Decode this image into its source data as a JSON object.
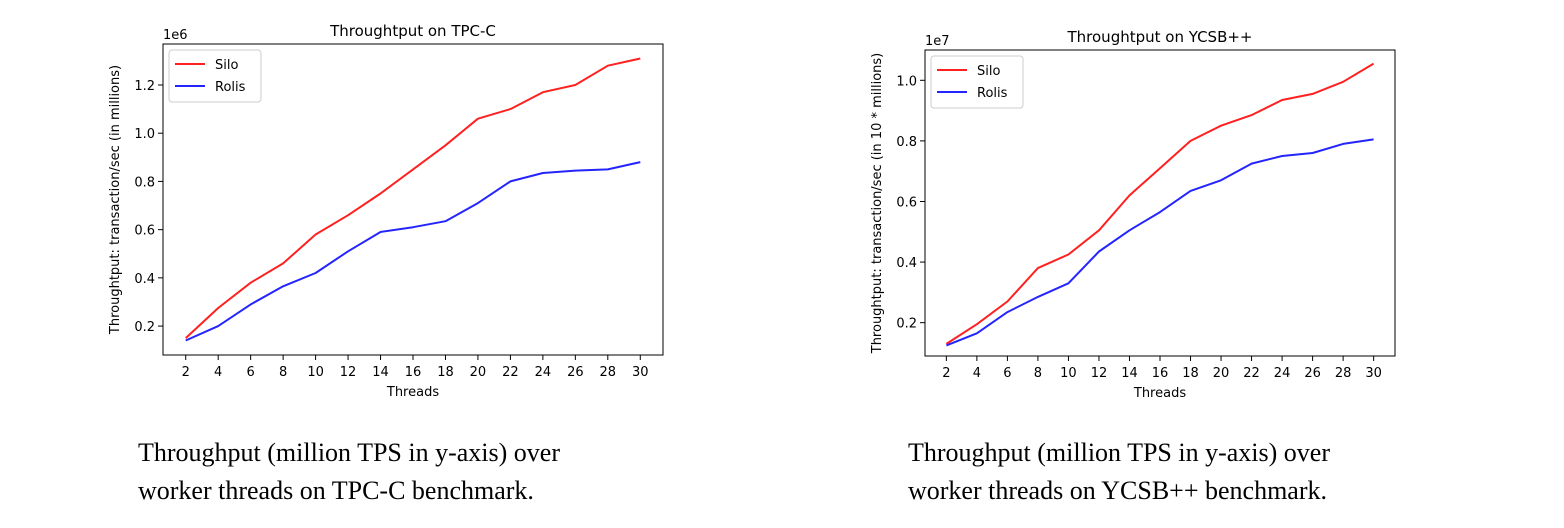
{
  "colors": {
    "silo": "#ff2020",
    "rolis": "#2424ff",
    "axis": "#000000"
  },
  "captions": [
    {
      "line1": "Throughput (million TPS in y-axis) over",
      "line2": "worker threads on TPC-C benchmark."
    },
    {
      "line1": "Throughput (million TPS in y-axis) over",
      "line2": "worker threads on YCSB++ benchmark."
    }
  ],
  "chart_data": [
    {
      "type": "line",
      "title": "Throughtput on TPC-C",
      "xlabel": "Threads",
      "ylabel": "Throughtput: transaction/sec (in millions)",
      "offset_text": "1e6",
      "x": [
        2,
        4,
        6,
        8,
        10,
        12,
        14,
        16,
        18,
        20,
        22,
        24,
        26,
        28,
        30
      ],
      "xticks": [
        "2",
        "4",
        "6",
        "8",
        "10",
        "12",
        "14",
        "16",
        "18",
        "20",
        "22",
        "24",
        "26",
        "28",
        "30"
      ],
      "yticks": [
        0.2,
        0.4,
        0.6,
        0.8,
        1.0,
        1.2
      ],
      "ytick_labels": [
        "0.2",
        "0.4",
        "0.6",
        "0.8",
        "1.0",
        "1.2"
      ],
      "xlim": [
        0.6,
        31.4
      ],
      "ylim": [
        0.08,
        1.37
      ],
      "legend_position": "upper-left",
      "grid": false,
      "series": [
        {
          "name": "Silo",
          "color": "#ff2020",
          "values": [
            0.15,
            0.275,
            0.38,
            0.46,
            0.58,
            0.66,
            0.75,
            0.85,
            0.95,
            1.06,
            1.1,
            1.17,
            1.2,
            1.28,
            1.31
          ]
        },
        {
          "name": "Rolis",
          "color": "#2424ff",
          "values": [
            0.14,
            0.2,
            0.29,
            0.365,
            0.42,
            0.51,
            0.59,
            0.61,
            0.635,
            0.71,
            0.8,
            0.835,
            0.845,
            0.85,
            0.88
          ]
        }
      ]
    },
    {
      "type": "line",
      "title": "Throughtput on YCSB++",
      "xlabel": "Threads",
      "ylabel": "Throughtput: transaction/sec (in 10 * millions)",
      "offset_text": "1e7",
      "x": [
        2,
        4,
        6,
        8,
        10,
        12,
        14,
        16,
        18,
        20,
        22,
        24,
        26,
        28,
        30
      ],
      "xticks": [
        "2",
        "4",
        "6",
        "8",
        "10",
        "12",
        "14",
        "16",
        "18",
        "20",
        "22",
        "24",
        "26",
        "28",
        "30"
      ],
      "yticks": [
        0.2,
        0.4,
        0.6,
        0.8,
        1.0
      ],
      "ytick_labels": [
        "0.2",
        "0.4",
        "0.6",
        "0.8",
        "1.0"
      ],
      "xlim": [
        0.6,
        31.4
      ],
      "ylim": [
        0.09,
        1.1
      ],
      "legend_position": "upper-left",
      "grid": false,
      "series": [
        {
          "name": "Silo",
          "color": "#ff2020",
          "values": [
            0.13,
            0.195,
            0.27,
            0.38,
            0.425,
            0.505,
            0.62,
            0.71,
            0.8,
            0.85,
            0.885,
            0.935,
            0.955,
            0.995,
            1.055
          ]
        },
        {
          "name": "Rolis",
          "color": "#2424ff",
          "values": [
            0.125,
            0.165,
            0.235,
            0.285,
            0.33,
            0.435,
            0.505,
            0.565,
            0.635,
            0.67,
            0.725,
            0.75,
            0.76,
            0.79,
            0.805
          ]
        }
      ]
    }
  ]
}
